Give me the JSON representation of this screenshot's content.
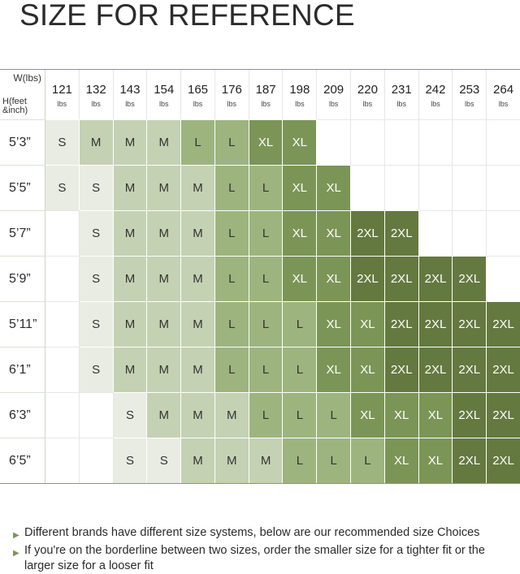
{
  "title": "SIZE FOR REFERENCE",
  "corner": {
    "weight_label": "W(lbs)",
    "height_label": "H(feet &inch)"
  },
  "weights": [
    {
      "value": "121",
      "unit": "lbs"
    },
    {
      "value": "132",
      "unit": "lbs"
    },
    {
      "value": "143",
      "unit": "lbs"
    },
    {
      "value": "154",
      "unit": "lbs"
    },
    {
      "value": "165",
      "unit": "lbs"
    },
    {
      "value": "176",
      "unit": "lbs"
    },
    {
      "value": "187",
      "unit": "lbs"
    },
    {
      "value": "198",
      "unit": "lbs"
    },
    {
      "value": "209",
      "unit": "lbs"
    },
    {
      "value": "220",
      "unit": "lbs"
    },
    {
      "value": "231",
      "unit": "lbs"
    },
    {
      "value": "242",
      "unit": "lbs"
    },
    {
      "value": "253",
      "unit": "lbs"
    },
    {
      "value": "264",
      "unit": "lbs"
    }
  ],
  "rows": [
    {
      "height": "5’3”",
      "sizes": [
        "S",
        "M",
        "M",
        "M",
        "L",
        "L",
        "XL",
        "XL",
        "",
        "",
        "",
        "",
        "",
        ""
      ]
    },
    {
      "height": "5’5”",
      "sizes": [
        "S",
        "S",
        "M",
        "M",
        "M",
        "L",
        "L",
        "XL",
        "XL",
        "",
        "",
        "",
        "",
        ""
      ]
    },
    {
      "height": "5’7”",
      "sizes": [
        "",
        "S",
        "M",
        "M",
        "M",
        "L",
        "L",
        "XL",
        "XL",
        "2XL",
        "2XL",
        "",
        "",
        ""
      ]
    },
    {
      "height": "5’9”",
      "sizes": [
        "",
        "S",
        "M",
        "M",
        "M",
        "L",
        "L",
        "XL",
        "XL",
        "2XL",
        "2XL",
        "2XL",
        "2XL",
        ""
      ]
    },
    {
      "height": "5’11”",
      "sizes": [
        "",
        "S",
        "M",
        "M",
        "M",
        "L",
        "L",
        "L",
        "XL",
        "XL",
        "2XL",
        "2XL",
        "2XL",
        "2XL"
      ]
    },
    {
      "height": "6’1”",
      "sizes": [
        "",
        "S",
        "M",
        "M",
        "M",
        "L",
        "L",
        "L",
        "XL",
        "XL",
        "2XL",
        "2XL",
        "2XL",
        "2XL"
      ]
    },
    {
      "height": "6’3”",
      "sizes": [
        "",
        "",
        "S",
        "M",
        "M",
        "M",
        "L",
        "L",
        "L",
        "XL",
        "XL",
        "XL",
        "2XL",
        "2XL"
      ]
    },
    {
      "height": "6’5”",
      "sizes": [
        "",
        "",
        "S",
        "S",
        "M",
        "M",
        "M",
        "L",
        "L",
        "L",
        "XL",
        "XL",
        "2XL",
        "2XL"
      ]
    }
  ],
  "notes": [
    "Different brands have different size systems, below are our recommended size Choices",
    "If you're on the borderline between two sizes, order the smaller size for a tighter fit or the larger size for a looser fit"
  ],
  "colors": {
    "S": "#e9ece3",
    "M": "#c5d1b3",
    "L": "#9db47f",
    "XL": "#7b9556",
    "2XL": "#64793f",
    "bullet": "#7b9556"
  }
}
